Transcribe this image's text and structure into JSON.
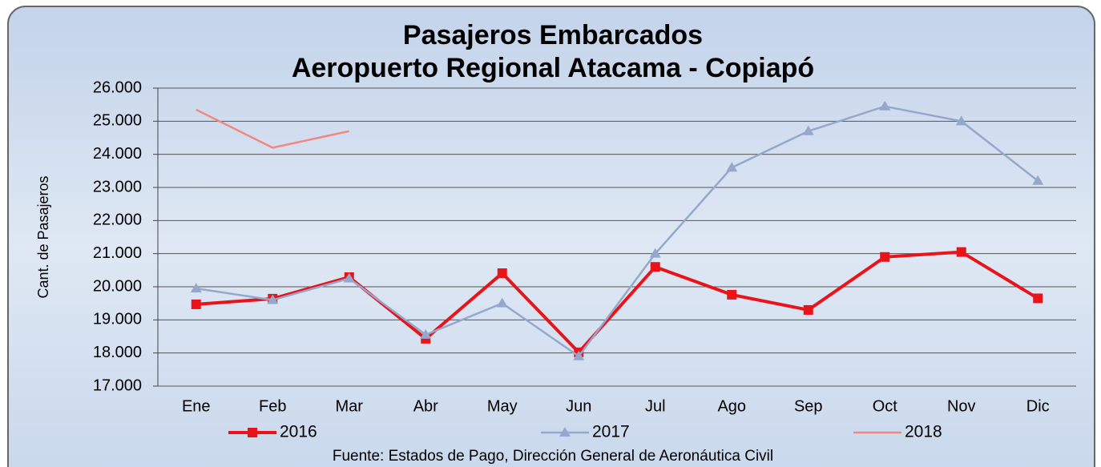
{
  "chart_data": {
    "type": "line",
    "title": [
      "Pasajeros Embarcados",
      "Aeropuerto Regional Atacama - Copiapó"
    ],
    "y_label": "Cant. de Pasajeros",
    "source": "Fuente: Estados de Pago, Dirección General de Aeronáutica Civil",
    "categories": [
      "Ene",
      "Feb",
      "Mar",
      "Abr",
      "May",
      "Jun",
      "Jul",
      "Ago",
      "Sep",
      "Oct",
      "Nov",
      "Dic"
    ],
    "series": [
      {
        "name": "2016",
        "color": "#e8141a",
        "marker": "square",
        "values": [
          19470,
          19640,
          20290,
          18430,
          20410,
          18020,
          20600,
          19760,
          19300,
          20900,
          21050,
          19650
        ]
      },
      {
        "name": "2017",
        "color": "#95a8cc",
        "marker": "triangle",
        "values": [
          19950,
          19600,
          20250,
          18550,
          19500,
          17900,
          21000,
          23600,
          24700,
          25450,
          25000,
          23200
        ]
      },
      {
        "name": "2018",
        "color": "#f08a80",
        "marker": "none",
        "values": [
          25350,
          24200,
          24700,
          null,
          null,
          null,
          null,
          null,
          null,
          null,
          null,
          null
        ]
      }
    ],
    "ylim": [
      17000,
      26000
    ],
    "yticks": [
      {
        "value": 17000,
        "label": "17.000"
      },
      {
        "value": 18000,
        "label": "18.000"
      },
      {
        "value": 19000,
        "label": "19.000"
      },
      {
        "value": 20000,
        "label": "20.000"
      },
      {
        "value": 21000,
        "label": "21.000"
      },
      {
        "value": 22000,
        "label": "22.000"
      },
      {
        "value": 23000,
        "label": "23.000"
      },
      {
        "value": 24000,
        "label": "24.000"
      },
      {
        "value": 25000,
        "label": "25.000"
      },
      {
        "value": 26000,
        "label": "26.000"
      }
    ],
    "grid": true
  }
}
